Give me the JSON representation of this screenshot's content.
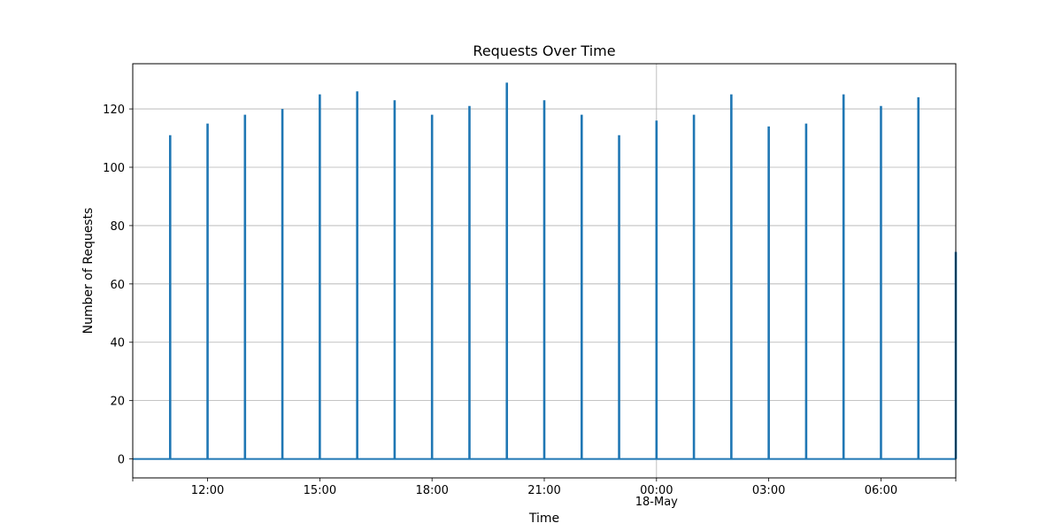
{
  "chart_data": {
    "type": "line",
    "title": "Requests Over Time",
    "xlabel": "Time",
    "ylabel": "Number of Requests",
    "x_axis": "datetime",
    "xlim": [
      "2024-05-17T10:00",
      "2024-05-18T08:00"
    ],
    "ylim": [
      -6.5,
      135.5
    ],
    "grid": true,
    "legend": "none",
    "color": "#1f77b4",
    "x_ticks": [
      {
        "x": "2024-05-17T12:00",
        "label": "12:00"
      },
      {
        "x": "2024-05-17T15:00",
        "label": "15:00"
      },
      {
        "x": "2024-05-17T18:00",
        "label": "18:00"
      },
      {
        "x": "2024-05-17T21:00",
        "label": "21:00"
      },
      {
        "x": "2024-05-18T00:00",
        "label": "00:00",
        "sublabel": "18-May"
      },
      {
        "x": "2024-05-18T03:00",
        "label": "03:00"
      },
      {
        "x": "2024-05-18T06:00",
        "label": "06:00"
      }
    ],
    "y_ticks": [
      0,
      20,
      40,
      60,
      80,
      100,
      120
    ],
    "series": [
      {
        "values": [
          {
            "x": "2024-05-17T11:00",
            "y": 111
          },
          {
            "x": "2024-05-17T12:00",
            "y": 115
          },
          {
            "x": "2024-05-17T13:00",
            "y": 118
          },
          {
            "x": "2024-05-17T14:00",
            "y": 120
          },
          {
            "x": "2024-05-17T15:00",
            "y": 125
          },
          {
            "x": "2024-05-17T16:00",
            "y": 126
          },
          {
            "x": "2024-05-17T17:00",
            "y": 123
          },
          {
            "x": "2024-05-17T18:00",
            "y": 118
          },
          {
            "x": "2024-05-17T19:00",
            "y": 121
          },
          {
            "x": "2024-05-17T20:00",
            "y": 129
          },
          {
            "x": "2024-05-17T21:00",
            "y": 123
          },
          {
            "x": "2024-05-17T22:00",
            "y": 118
          },
          {
            "x": "2024-05-17T23:00",
            "y": 111
          },
          {
            "x": "2024-05-18T00:00",
            "y": 116
          },
          {
            "x": "2024-05-18T01:00",
            "y": 118
          },
          {
            "x": "2024-05-18T02:00",
            "y": 125
          },
          {
            "x": "2024-05-18T03:00",
            "y": 114
          },
          {
            "x": "2024-05-18T04:00",
            "y": 115
          },
          {
            "x": "2024-05-18T05:00",
            "y": 125
          },
          {
            "x": "2024-05-18T06:00",
            "y": 121
          },
          {
            "x": "2024-05-18T07:00",
            "y": 124
          },
          {
            "x": "2024-05-18T08:00",
            "y": 71
          }
        ]
      }
    ]
  }
}
